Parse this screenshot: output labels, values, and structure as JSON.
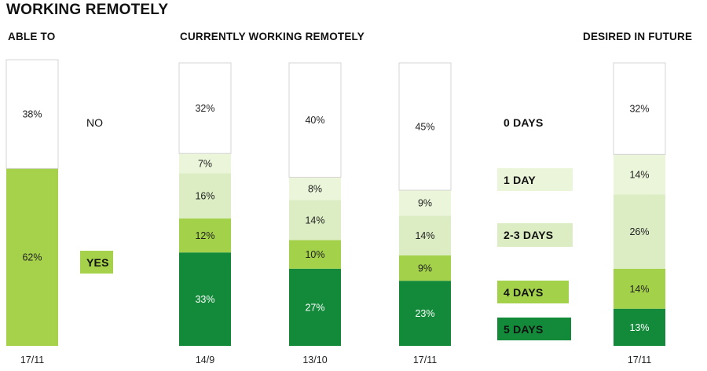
{
  "title": "WORKING REMOTELY",
  "sections": {
    "able_to": "ABLE TO",
    "currently": "CURRENTLY WORKING REMOTELY",
    "desired": "DESIRED IN FUTURE"
  },
  "colors": {
    "white": "#ffffff",
    "light1": "#ebf5d9",
    "light2": "#dcedc4",
    "mid": "#a3d24a",
    "dark": "#128a3a",
    "yes": "#a5d24a",
    "border": "#d4d4d4"
  },
  "able_labels": {
    "no": "NO",
    "yes": "YES"
  },
  "legend": [
    {
      "label": "0 DAYS",
      "color": "#ffffff"
    },
    {
      "label": "1 DAY",
      "color": "#ebf5d9"
    },
    {
      "label": "2-3 DAYS",
      "color": "#dcedc4"
    },
    {
      "label": "4 DAYS",
      "color": "#a3d24a"
    },
    {
      "label": "5 DAYS",
      "color": "#128a3a"
    }
  ],
  "chart_data": [
    {
      "type": "bar",
      "title": "ABLE TO",
      "categories": [
        "17/11"
      ],
      "series": [
        {
          "name": "NO",
          "values": [
            38
          ]
        },
        {
          "name": "YES",
          "values": [
            62
          ]
        }
      ]
    },
    {
      "type": "bar",
      "title": "CURRENTLY WORKING REMOTELY",
      "categories": [
        "14/9",
        "13/10",
        "17/11"
      ],
      "series": [
        {
          "name": "0 DAYS",
          "values": [
            32,
            40,
            45
          ]
        },
        {
          "name": "1 DAY",
          "values": [
            7,
            8,
            9
          ]
        },
        {
          "name": "2-3 DAYS",
          "values": [
            16,
            14,
            14
          ]
        },
        {
          "name": "4 DAYS",
          "values": [
            12,
            10,
            9
          ]
        },
        {
          "name": "5 DAYS",
          "values": [
            33,
            27,
            23
          ]
        }
      ]
    },
    {
      "type": "bar",
      "title": "DESIRED IN FUTURE",
      "categories": [
        "17/11"
      ],
      "series": [
        {
          "name": "0 DAYS",
          "values": [
            32
          ]
        },
        {
          "name": "1 DAY",
          "values": [
            14
          ]
        },
        {
          "name": "2-3 DAYS",
          "values": [
            26
          ]
        },
        {
          "name": "4 DAYS",
          "values": [
            14
          ]
        },
        {
          "name": "5 DAYS",
          "values": [
            13
          ]
        }
      ]
    }
  ]
}
